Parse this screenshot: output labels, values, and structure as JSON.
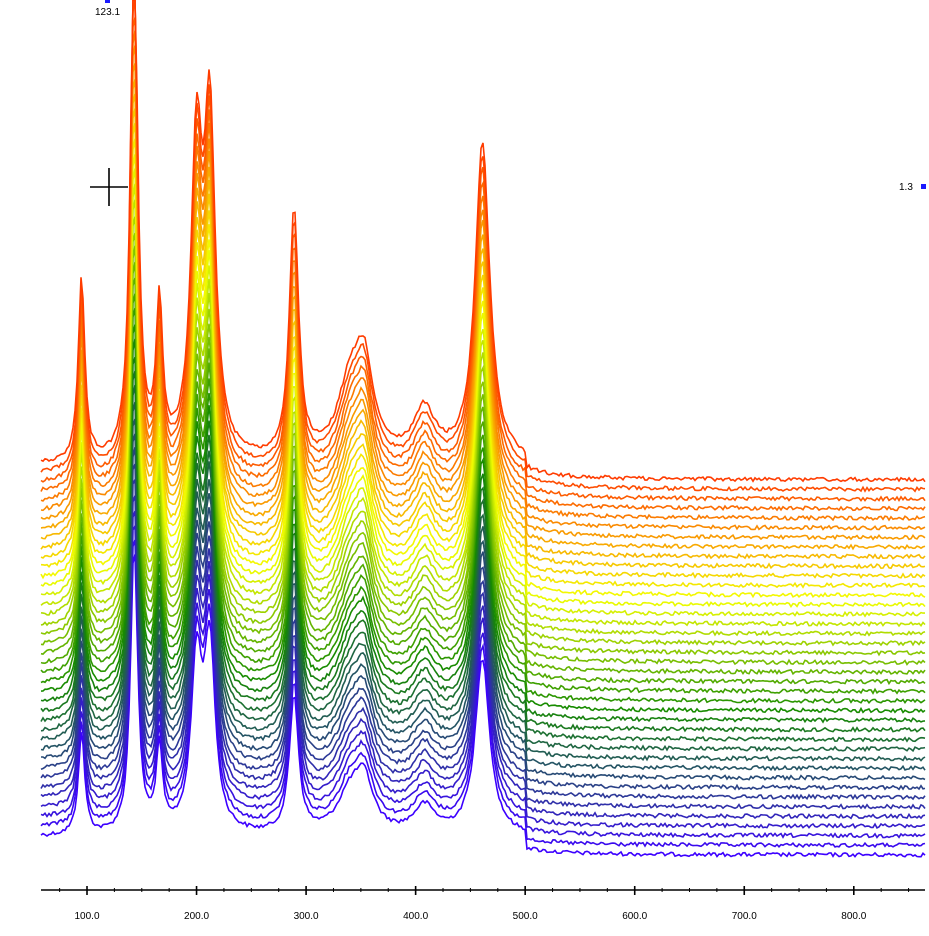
{
  "chart_data": {
    "type": "line",
    "title": "",
    "xlabel": "",
    "ylabel": "",
    "x_ticks": [
      "100.0",
      "200.0",
      "300.0",
      "400.0",
      "500.0",
      "600.0",
      "700.0",
      "800.0"
    ],
    "xlim": [
      58,
      865
    ],
    "n_series": 40,
    "series_colors": {
      "first": "#3c00ff",
      "mid_green": "#158a00",
      "mid_yellow": "#f3ff00",
      "last": "#ff3c00"
    },
    "peaks": [
      {
        "x": 95,
        "height": 185
      },
      {
        "x": 143,
        "height": 520
      },
      {
        "x": 166,
        "height": 150
      },
      {
        "x": 200,
        "height": 300
      },
      {
        "x": 212,
        "height": 330
      },
      {
        "x": 289,
        "height": 250
      },
      {
        "x": 340,
        "height": 70
      },
      {
        "x": 353,
        "height": 85
      },
      {
        "x": 408,
        "height": 50
      },
      {
        "x": 461,
        "height": 320
      }
    ],
    "markers": {
      "top_value": "123.1",
      "right_value": "1.3",
      "marker_color": "#1a1aff"
    }
  }
}
